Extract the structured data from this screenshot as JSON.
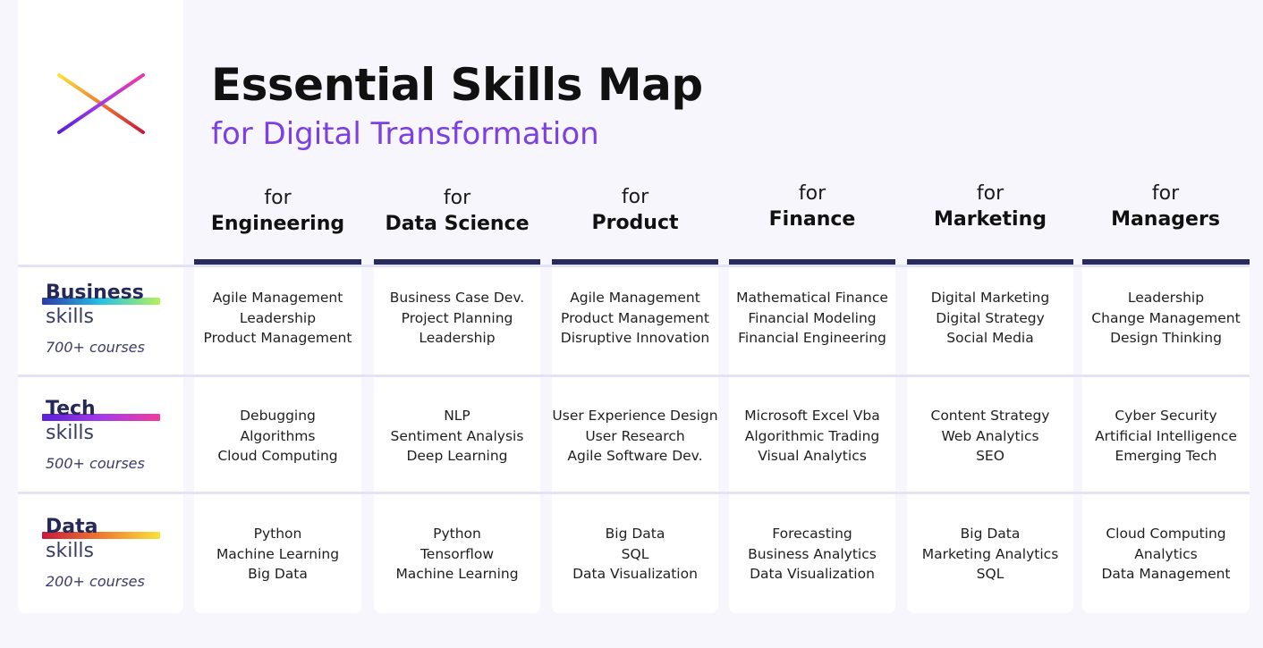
{
  "title": "Essential Skills Map",
  "subtitle": "for Digital Transformation",
  "for_label": "for",
  "columns": [
    {
      "name": "Engineering"
    },
    {
      "name": "Data Science"
    },
    {
      "name": "Product"
    },
    {
      "name": "Finance"
    },
    {
      "name": "Marketing"
    },
    {
      "name": "Managers"
    }
  ],
  "rows": [
    {
      "label": "Business",
      "sub": "skills",
      "count": "700+ courses",
      "underline_colors": [
        "#2b3aa8",
        "#27c2e6",
        "#b5f25a"
      ],
      "cells": [
        [
          "Agile Management",
          "Leadership",
          "Product Management"
        ],
        [
          "Business Case Dev.",
          "Project Planning",
          "Leadership"
        ],
        [
          "Agile Management",
          "Product Management",
          "Disruptive Innovation"
        ],
        [
          "Mathematical Finance",
          "Financial Modeling",
          "Financial Engineering"
        ],
        [
          "Digital Marketing",
          "Digital Strategy",
          "Social Media"
        ],
        [
          "Leadership",
          "Change Management",
          "Design Thinking"
        ]
      ]
    },
    {
      "label": "Tech",
      "sub": "skills",
      "count": "500+ courses",
      "underline_colors": [
        "#5a1fd8",
        "#a43ae6",
        "#f03aa0"
      ],
      "cells": [
        [
          "Debugging",
          "Algorithms",
          "Cloud Computing"
        ],
        [
          "NLP",
          "Sentiment Analysis",
          "Deep Learning"
        ],
        [
          "User Experience Design",
          "User Research",
          "Agile Software Dev."
        ],
        [
          "Microsoft Excel Vba",
          "Algorithmic Trading",
          "Visual Analytics"
        ],
        [
          "Content Strategy",
          "Web Analytics",
          "SEO"
        ],
        [
          "Cyber Security",
          "Artificial Intelligence",
          "Emerging Tech"
        ]
      ]
    },
    {
      "label": "Data",
      "sub": "skills",
      "count": "200+ courses",
      "underline_colors": [
        "#c8183c",
        "#f07a30",
        "#f9e23a"
      ],
      "cells": [
        [
          "Python",
          "Machine Learning",
          "Big Data"
        ],
        [
          "Python",
          "Tensorflow",
          "Machine Learning"
        ],
        [
          "Big Data",
          "SQL",
          "Data Visualization"
        ],
        [
          "Forecasting",
          "Business Analytics",
          "Data Visualization"
        ],
        [
          "Big Data",
          "Marketing Analytics",
          "SQL"
        ],
        [
          "Cloud Computing",
          "Analytics",
          "Data Management"
        ]
      ]
    }
  ]
}
